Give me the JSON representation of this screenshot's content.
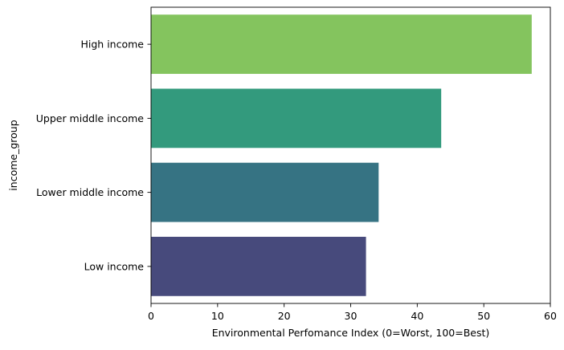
{
  "chart_data": {
    "type": "bar",
    "orientation": "horizontal",
    "categories": [
      "High income",
      "Upper middle income",
      "Lower middle income",
      "Low income"
    ],
    "values": [
      57.2,
      43.6,
      34.2,
      32.3
    ],
    "colors": [
      "#84c45e",
      "#339a7d",
      "#367383",
      "#474a7c"
    ],
    "title": "",
    "xlabel": "Environmental Perfomance Index (0=Worst, 100=Best)",
    "ylabel": "income_group",
    "xlim": [
      0,
      60
    ],
    "xticks": [
      0,
      10,
      20,
      30,
      40,
      50,
      60
    ],
    "grid": false,
    "legend": "none"
  }
}
